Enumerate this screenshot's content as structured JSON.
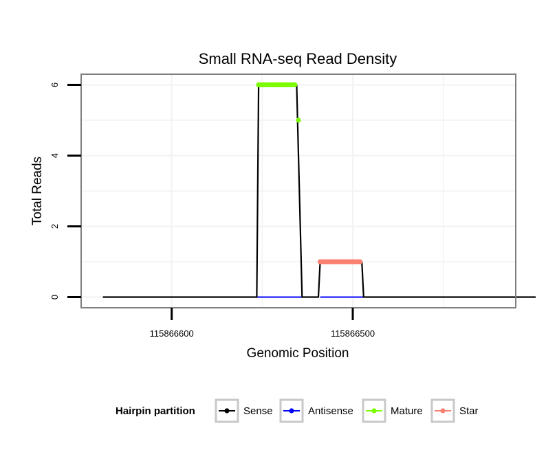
{
  "chart_data": {
    "type": "line",
    "title": "Small RNA-seq Read Density",
    "xlabel": "Genomic Position",
    "ylabel": "Total Reads",
    "x_reversed": true,
    "xlim": [
      115866650,
      115866410
    ],
    "ylim": [
      -0.3,
      6.3
    ],
    "x_ticks": [
      115866600,
      115866500
    ],
    "x_tick_labels": [
      "115866600",
      "115866500"
    ],
    "y_ticks": [
      0,
      2,
      4,
      6
    ],
    "y_tick_labels": [
      "0",
      "2",
      "4",
      "6"
    ],
    "grid": true,
    "legend": {
      "title": "Hairpin partition",
      "placement": "bottom",
      "entries": [
        "Sense",
        "Antisense",
        "Mature",
        "Star"
      ]
    },
    "series": [
      {
        "name": "Sense",
        "color": "#000000",
        "x": [
          115866638,
          115866553,
          115866552,
          115866531,
          115866528,
          115866519,
          115866518,
          115866495,
          115866494,
          115866399
        ],
        "y": [
          0,
          0,
          6,
          6,
          0,
          0,
          1,
          1,
          0,
          0
        ]
      },
      {
        "name": "Antisense",
        "color": "#0000ff",
        "x": [
          115866553,
          115866528,
          115866518,
          115866494
        ],
        "y": [
          0,
          0,
          0,
          0
        ]
      },
      {
        "name": "Mature",
        "color": "#7cfc00",
        "x": [
          115866552,
          115866550,
          115866548,
          115866546,
          115866544,
          115866542,
          115866540,
          115866538,
          115866536,
          115866534,
          115866532,
          115866530
        ],
        "y": [
          6,
          6,
          6,
          6,
          6,
          6,
          6,
          6,
          6,
          6,
          6,
          5
        ]
      },
      {
        "name": "Star",
        "color": "#fa8072",
        "x": [
          115866518,
          115866516,
          115866514,
          115866512,
          115866510,
          115866508,
          115866506,
          115866504,
          115866502,
          115866500,
          115866498,
          115866496
        ],
        "y": [
          1,
          1,
          1,
          1,
          1,
          1,
          1,
          1,
          1,
          1,
          1,
          1
        ]
      }
    ]
  }
}
